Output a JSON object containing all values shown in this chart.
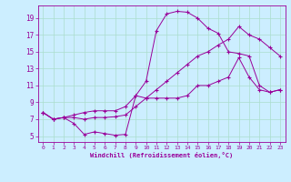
{
  "xlabel": "Windchill (Refroidissement éolien,°C)",
  "bg_color": "#cceeff",
  "line_color": "#990099",
  "grid_color": "#aaddcc",
  "x_ticks": [
    0,
    1,
    2,
    3,
    4,
    5,
    6,
    7,
    8,
    9,
    10,
    11,
    12,
    13,
    14,
    15,
    16,
    17,
    18,
    19,
    20,
    21,
    22,
    23
  ],
  "y_ticks": [
    5,
    7,
    9,
    11,
    13,
    15,
    17,
    19
  ],
  "xlim": [
    -0.5,
    23.5
  ],
  "ylim": [
    4.3,
    20.5
  ],
  "series": [
    [
      7.8,
      7.0,
      7.2,
      6.5,
      5.2,
      5.5,
      5.3,
      5.1,
      5.2,
      9.8,
      9.5,
      9.5,
      9.5,
      9.5,
      9.8,
      11.0,
      11.0,
      11.5,
      12.0,
      14.3,
      12.0,
      10.5,
      10.2,
      10.5
    ],
    [
      7.8,
      7.0,
      7.2,
      7.2,
      7.0,
      7.2,
      7.2,
      7.3,
      7.5,
      8.5,
      9.5,
      10.5,
      11.5,
      12.5,
      13.5,
      14.5,
      15.0,
      15.8,
      16.5,
      18.0,
      17.0,
      16.5,
      15.5,
      14.5
    ],
    [
      7.8,
      7.0,
      7.2,
      7.5,
      7.8,
      8.0,
      8.0,
      8.0,
      8.5,
      9.8,
      11.5,
      17.5,
      19.5,
      19.8,
      19.7,
      19.0,
      17.8,
      17.2,
      15.0,
      14.8,
      14.5,
      11.0,
      10.2,
      10.5
    ]
  ]
}
